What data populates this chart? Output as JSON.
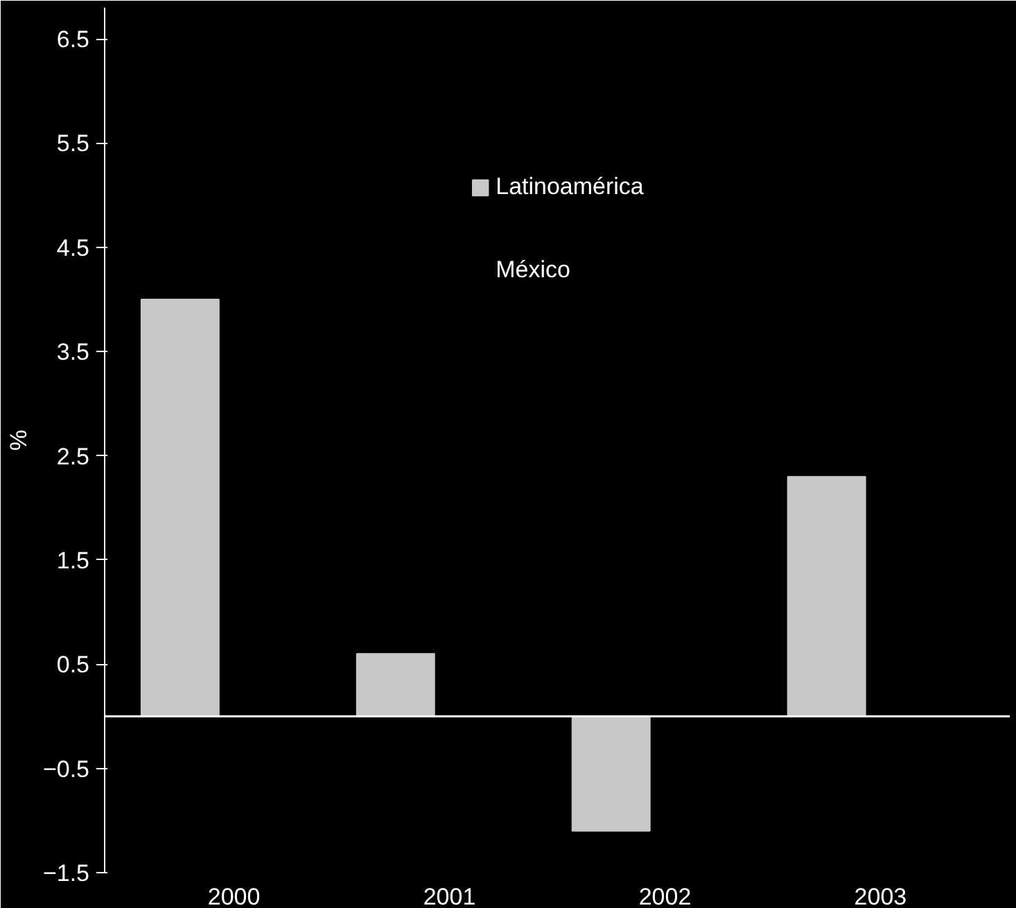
{
  "chart_data": {
    "type": "bar",
    "ylabel": "%",
    "categories": [
      "2000",
      "2001",
      "2002",
      "2003"
    ],
    "series": [
      {
        "name": "Latinoamérica",
        "color": "#c8c8c8",
        "values": [
          4.0,
          0.6,
          -1.1,
          2.3
        ]
      },
      {
        "name": "México",
        "values": [
          null,
          null,
          null,
          null
        ]
      }
    ],
    "ylim": [
      -1.5,
      6.8
    ],
    "yticks": [
      -1.5,
      -0.5,
      0.5,
      1.5,
      2.5,
      3.5,
      4.5,
      5.5,
      6.5
    ],
    "grid": false,
    "legend": "top"
  }
}
